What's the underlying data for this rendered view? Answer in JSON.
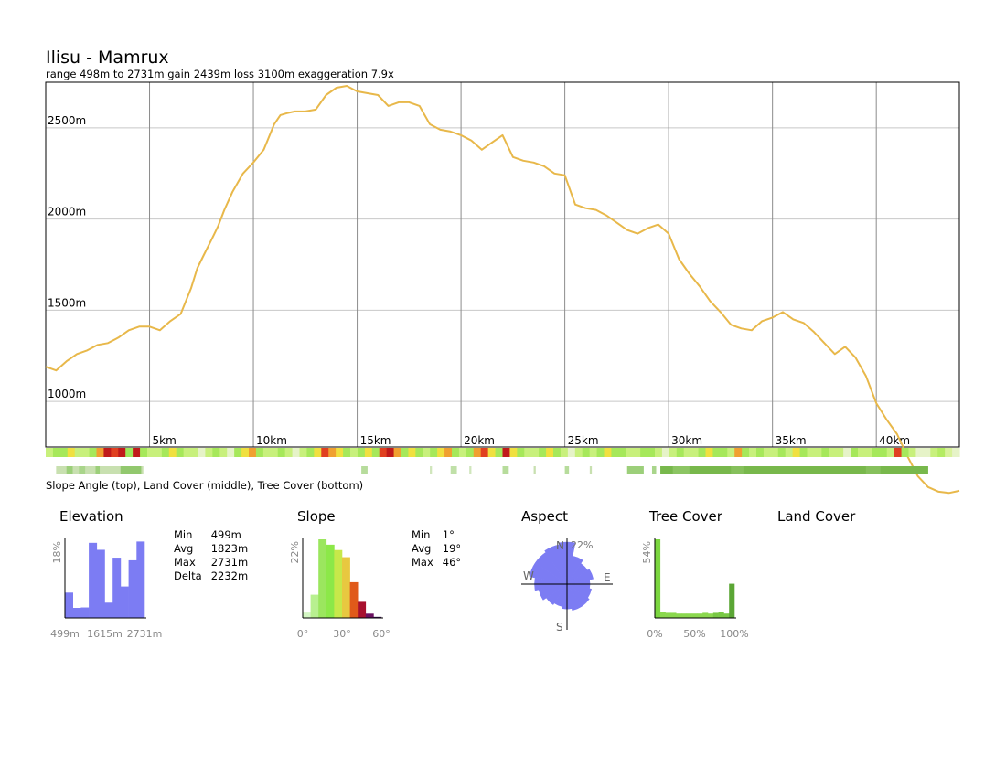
{
  "chart_data": [
    {
      "type": "line",
      "title": "Ilisu - Mamrux",
      "subtitle": "range 498m to 2731m  gain 2439m  loss 3100m  exaggeration 7.9x",
      "x_unit": "km",
      "ylim": [
        750,
        2750
      ],
      "xlim": [
        0,
        44
      ],
      "y_ticks": [
        {
          "value": 1000,
          "label": "1000m"
        },
        {
          "value": 1500,
          "label": "1500m"
        },
        {
          "value": 2000,
          "label": "2000m"
        },
        {
          "value": 2500,
          "label": "2500m"
        }
      ],
      "x_ticks": [
        {
          "value": 5,
          "label": "5km"
        },
        {
          "value": 10,
          "label": "10km"
        },
        {
          "value": 15,
          "label": "15km"
        },
        {
          "value": 20,
          "label": "20km"
        },
        {
          "value": 25,
          "label": "25km"
        },
        {
          "value": 30,
          "label": "30km"
        },
        {
          "value": 35,
          "label": "35km"
        },
        {
          "value": 40,
          "label": "40km"
        }
      ],
      "grid": true,
      "line_color": "#e8b84a",
      "x": [
        0,
        0.5,
        1,
        1.5,
        2,
        2.5,
        3,
        3.5,
        4,
        4.5,
        5,
        5.5,
        6,
        6.5,
        7,
        7.3,
        7.6,
        8,
        8.3,
        8.6,
        9,
        9.5,
        10,
        10.5,
        11,
        11.3,
        11.6,
        12,
        12.5,
        13,
        13.5,
        14,
        14.5,
        15,
        15.5,
        16,
        16.5,
        17,
        17.5,
        18,
        18.5,
        19,
        19.5,
        20,
        20.5,
        21,
        21.5,
        22,
        22.5,
        23,
        23.5,
        24,
        24.5,
        25,
        25.5,
        26,
        26.5,
        27,
        27.5,
        28,
        28.5,
        29,
        29.5,
        30,
        30.5,
        31,
        31.5,
        32,
        32.5,
        33,
        33.5,
        34,
        34.5,
        35,
        35.5,
        36,
        36.5,
        37,
        37.5,
        38,
        38.5,
        39,
        39.5,
        40,
        40.5,
        41,
        41.5,
        42,
        42.5,
        43,
        43.5,
        44
      ],
      "y": [
        1190,
        1170,
        1220,
        1260,
        1280,
        1310,
        1320,
        1350,
        1390,
        1410,
        1410,
        1390,
        1440,
        1480,
        1620,
        1730,
        1800,
        1890,
        1960,
        2050,
        2150,
        2250,
        2310,
        2380,
        2520,
        2570,
        2580,
        2590,
        2590,
        2600,
        2680,
        2720,
        2730,
        2700,
        2690,
        2680,
        2620,
        2640,
        2640,
        2620,
        2520,
        2490,
        2480,
        2460,
        2430,
        2380,
        2420,
        2460,
        2340,
        2320,
        2310,
        2290,
        2250,
        2240,
        2080,
        2060,
        2050,
        2020,
        1980,
        1940,
        1920,
        1950,
        1970,
        1920,
        1780,
        1700,
        1630,
        1550,
        1490,
        1420,
        1400,
        1390,
        1440,
        1460,
        1490,
        1450,
        1430,
        1380,
        1320,
        1260,
        1300,
        1240,
        1140,
        990,
        900,
        820,
        700,
        590,
        530,
        505,
        498,
        510
      ]
    },
    {
      "type": "bar",
      "title": "Elevation",
      "y_axis_label": "18%",
      "tick_labels": [
        "499m",
        "1615m",
        "2731m"
      ],
      "values": [
        5.8,
        2.3,
        2.4,
        17.2,
        15.6,
        3.5,
        13.8,
        7.2,
        13.2,
        17.5
      ],
      "ymax": 18,
      "color": "#7c7cf3"
    },
    {
      "type": "bar",
      "title": "Slope",
      "y_axis_label": "22%",
      "tick_labels": [
        "0°",
        "30°",
        "60°"
      ],
      "values": [
        1.5,
        6.5,
        22,
        20.5,
        19,
        17,
        10,
        4.5,
        1.2,
        0.3
      ],
      "colors": [
        "#d4f7c4",
        "#b8f090",
        "#9be65e",
        "#8ce848",
        "#c7e84a",
        "#e8c840",
        "#e05a1a",
        "#a8102e",
        "#6a1060",
        "#3a1050"
      ],
      "ymax": 22
    },
    {
      "type": "radar",
      "title": "Aspect",
      "directions": [
        "N",
        "E",
        "S",
        "W"
      ],
      "ring_label": "22%",
      "values": [
        22,
        15,
        13,
        14,
        12,
        13,
        14,
        14,
        13,
        12,
        13,
        15,
        17,
        20,
        20,
        21
      ],
      "max": 22,
      "color": "#7c7cf3"
    },
    {
      "type": "bar",
      "title": "Tree Cover",
      "y_axis_label": "54%",
      "tick_labels": [
        "0%",
        "50%",
        "100%"
      ],
      "values": [
        54,
        4,
        3.5,
        3.5,
        3,
        3,
        3,
        3,
        3,
        3.5,
        3,
        3.5,
        4,
        3,
        23.5
      ],
      "colors": [
        "#7bd640",
        "#8bd84e",
        "#8bd84e",
        "#8bd84e",
        "#8bd84e",
        "#8bd84e",
        "#8bd84e",
        "#8bd84e",
        "#8bd84e",
        "#8bd84e",
        "#8bd84e",
        "#79c845",
        "#79c845",
        "#79c845",
        "#5ba635"
      ],
      "ymax": 54
    }
  ],
  "legend_note": "Slope Angle (top), Land Cover (middle), Tree Cover (bottom)",
  "land_cover_title": "Land Cover",
  "elevation_stats": [
    {
      "label": "Min",
      "value": "499m"
    },
    {
      "label": "Avg",
      "value": "1823m"
    },
    {
      "label": "Max",
      "value": "2731m"
    },
    {
      "label": "Delta",
      "value": "2232m"
    }
  ],
  "slope_stats": [
    {
      "label": "Min",
      "value": "1°"
    },
    {
      "label": "Avg",
      "value": "19°"
    },
    {
      "label": "Max",
      "value": "46°"
    }
  ],
  "strips": {
    "slope_colors": [
      "#e6f3c8",
      "#c8f07c",
      "#a6e85a",
      "#f0e040",
      "#f0a030",
      "#e04020",
      "#c01a1a",
      "#9ee65a",
      "#d8f29a",
      "#b4ec62"
    ],
    "slope_pattern": [
      1,
      2,
      2,
      3,
      1,
      1,
      2,
      4,
      6,
      5,
      6,
      7,
      6,
      2,
      1,
      1,
      2,
      3,
      2,
      1,
      1,
      0,
      1,
      2,
      1,
      0,
      2,
      3,
      4,
      2,
      1,
      1,
      2,
      1,
      0,
      1,
      2,
      3,
      5,
      4,
      3,
      2,
      1,
      2,
      3,
      2,
      5,
      6,
      4,
      2,
      3,
      2,
      1,
      2,
      3,
      4,
      2,
      1,
      2,
      4,
      5,
      3,
      2,
      6,
      3,
      2,
      1,
      1,
      2,
      3,
      2,
      1,
      0,
      1,
      2,
      1,
      2,
      3,
      2,
      2,
      1,
      1,
      2,
      2,
      1,
      0,
      1,
      2,
      1,
      1,
      2,
      3,
      2,
      2,
      1,
      4,
      2,
      1,
      2,
      1,
      1,
      2,
      1,
      3,
      2,
      1,
      1,
      2,
      1,
      1,
      0,
      2,
      1,
      1,
      2,
      2,
      1,
      5,
      2,
      1,
      0,
      0,
      1,
      9,
      8,
      0
    ],
    "tree_segments": [
      {
        "from": 0.5,
        "to": 4.7,
        "color": "#c8e0b0"
      },
      {
        "from": 1.0,
        "to": 1.3,
        "color": "#9ccf7a"
      },
      {
        "from": 1.6,
        "to": 1.9,
        "color": "#a9d58b"
      },
      {
        "from": 2.4,
        "to": 2.6,
        "color": "#9ccf7a"
      },
      {
        "from": 3.6,
        "to": 4.6,
        "color": "#92c86e"
      },
      {
        "from": 15.2,
        "to": 15.5,
        "color": "#b7dc9c"
      },
      {
        "from": 18.5,
        "to": 18.6,
        "color": "#d0e6bc"
      },
      {
        "from": 19.5,
        "to": 19.8,
        "color": "#c0e0a8"
      },
      {
        "from": 20.4,
        "to": 20.5,
        "color": "#d0e6bc"
      },
      {
        "from": 22.0,
        "to": 22.3,
        "color": "#b7dc9c"
      },
      {
        "from": 23.5,
        "to": 23.6,
        "color": "#c8e0b0"
      },
      {
        "from": 25.0,
        "to": 25.2,
        "color": "#b7dc9c"
      },
      {
        "from": 26.2,
        "to": 26.3,
        "color": "#c8e0b0"
      },
      {
        "from": 28.0,
        "to": 28.8,
        "color": "#9ccf7a"
      },
      {
        "from": 29.2,
        "to": 29.4,
        "color": "#a9d58b"
      },
      {
        "from": 29.6,
        "to": 42.5,
        "color": "#78b84c"
      },
      {
        "from": 30.2,
        "to": 31.0,
        "color": "#8cc563"
      },
      {
        "from": 33.0,
        "to": 33.6,
        "color": "#86c05c"
      },
      {
        "from": 39.5,
        "to": 40.2,
        "color": "#86c05c"
      }
    ]
  }
}
